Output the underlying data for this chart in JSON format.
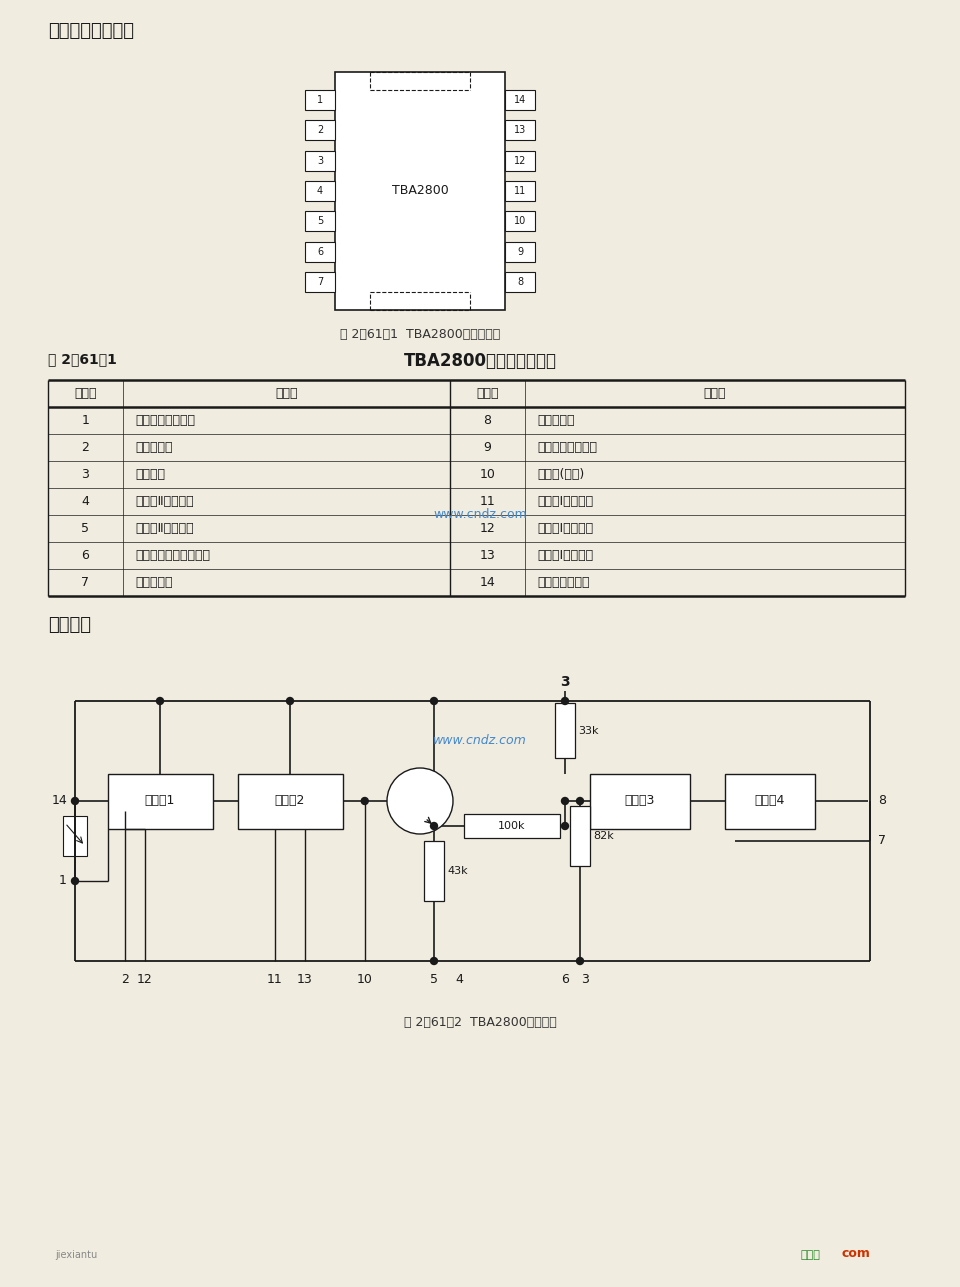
{
  "bg_color": "#f0ece0",
  "title_section1": "引脚排列图及功能",
  "ic_label": "TBA2800",
  "ic_pins_left": [
    "1",
    "2",
    "3",
    "4",
    "5",
    "6",
    "7"
  ],
  "ic_pins_right": [
    "14",
    "13",
    "12",
    "11",
    "10",
    "9",
    "8"
  ],
  "fig1_caption": "图 2－61－1  TBA2800引脚排列图",
  "table_title_left": "表 2－61－1",
  "table_title_right": "TBA2800引脚符号及功能",
  "table_headers": [
    "引脚号",
    "功　能",
    "引脚号",
    "功　能"
  ],
  "table_rows": [
    [
      "1",
      "输入信号的接地端",
      "8",
      "输出正脉冲"
    ],
    [
      "2",
      "外接电容器",
      "9",
      "输出信号的接地端"
    ],
    [
      "3",
      "电源电压",
      "10",
      "测试端(空脚)"
    ],
    [
      "4",
      "放大器Ⅱ的输入端",
      "11",
      "放大器Ⅰ的输入端"
    ],
    [
      "5",
      "放大器Ⅱ的输出端",
      "12",
      "放大器Ⅰ的输出端"
    ],
    [
      "6",
      "外接电阻调节分离阈值",
      "13",
      "放大器Ⅰ的接地端"
    ],
    [
      "7",
      "输出负脉冲",
      "14",
      "遥控信号输入端"
    ]
  ],
  "title_section2": "逻辑框图",
  "fig2_caption": "图 2－61－2  TBA2800逻辑框图",
  "watermark": "www.cndz.com",
  "footer_left": "jiexiantu",
  "footer_right": "com",
  "page_bg": "#f0ece0",
  "line_color": "#1a1a1a",
  "text_color": "#1a1a1a"
}
